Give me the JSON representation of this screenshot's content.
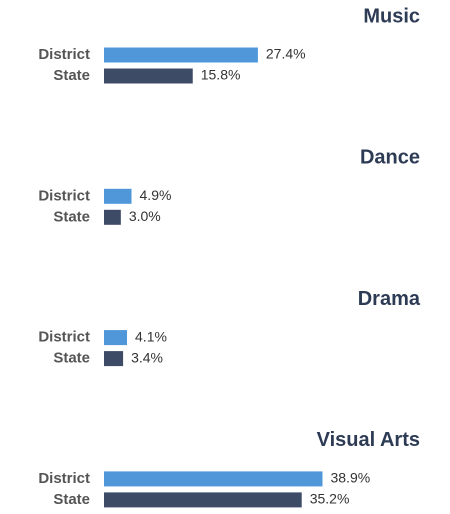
{
  "chart_data": [
    {
      "type": "bar",
      "title": "Music",
      "categories": [
        "District",
        "State"
      ],
      "values": [
        27.4,
        15.8
      ],
      "value_labels": [
        "27.4%",
        "15.8%"
      ],
      "colors": [
        "#4f97d8",
        "#3d4b66"
      ],
      "xlim": [
        0,
        60
      ]
    },
    {
      "type": "bar",
      "title": "Dance",
      "categories": [
        "District",
        "State"
      ],
      "values": [
        4.9,
        3.0
      ],
      "value_labels": [
        "4.9%",
        "3.0%"
      ],
      "colors": [
        "#4f97d8",
        "#3d4b66"
      ],
      "xlim": [
        0,
        60
      ]
    },
    {
      "type": "bar",
      "title": "Drama",
      "categories": [
        "District",
        "State"
      ],
      "values": [
        4.1,
        3.4
      ],
      "value_labels": [
        "4.1%",
        "3.4%"
      ],
      "colors": [
        "#4f97d8",
        "#3d4b66"
      ],
      "xlim": [
        0,
        60
      ]
    },
    {
      "type": "bar",
      "title": "Visual Arts",
      "categories": [
        "District",
        "State"
      ],
      "values": [
        38.9,
        35.2
      ],
      "value_labels": [
        "38.9%",
        "35.2%"
      ],
      "colors": [
        "#4f97d8",
        "#3d4b66"
      ],
      "xlim": [
        0,
        60
      ]
    }
  ]
}
